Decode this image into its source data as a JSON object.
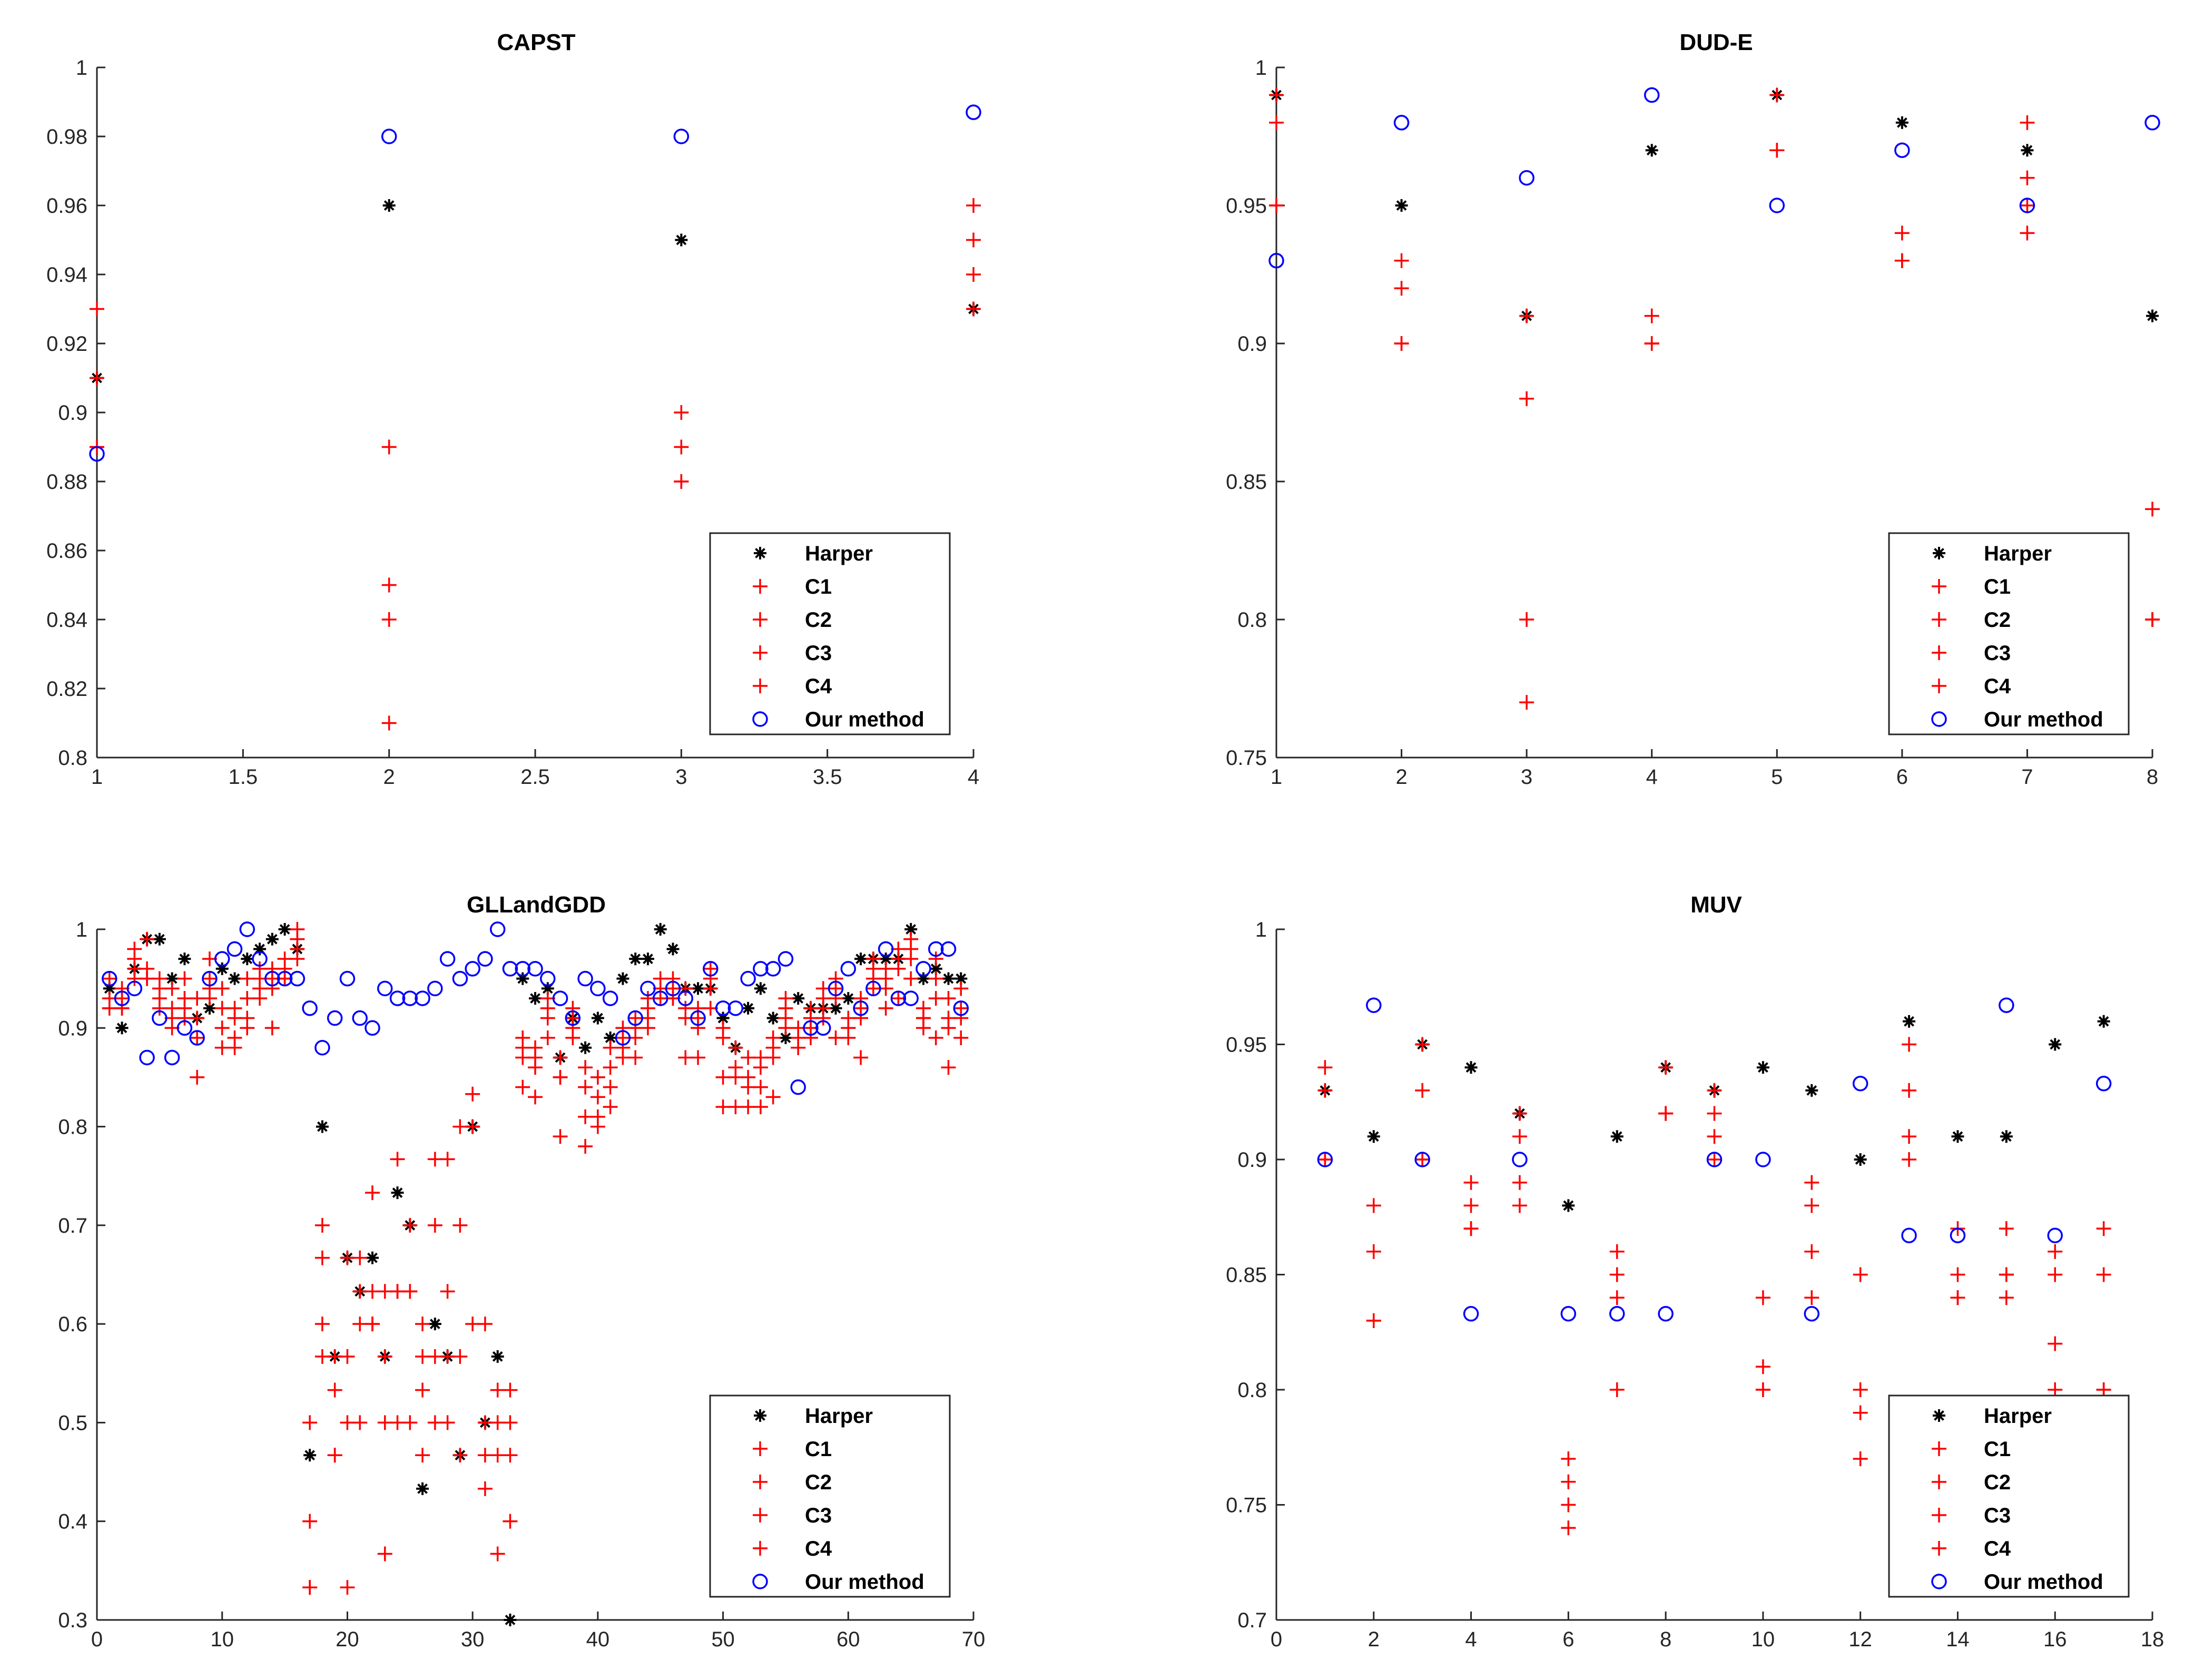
{
  "colors": {
    "harper": "#000000",
    "c": "#ff0000",
    "ours": "#0000ff",
    "axis": "#262626"
  },
  "legend": [
    {
      "label": "Harper",
      "marker": "asterisk",
      "color": "#000000"
    },
    {
      "label": "C1",
      "marker": "plus",
      "color": "#ff0000"
    },
    {
      "label": "C2",
      "marker": "plus",
      "color": "#ff0000"
    },
    {
      "label": "C3",
      "marker": "plus",
      "color": "#ff0000"
    },
    {
      "label": "C4",
      "marker": "plus",
      "color": "#ff0000"
    },
    {
      "label": "Our method",
      "marker": "circle",
      "color": "#0000ff"
    }
  ],
  "chart_data": [
    {
      "type": "scatter",
      "title": "CAPST",
      "xlim": [
        1,
        4
      ],
      "ylim": [
        0.8,
        1
      ],
      "xticks": [
        1,
        1.5,
        2,
        2.5,
        3,
        3.5,
        4
      ],
      "yticks": [
        0.8,
        0.82,
        0.84,
        0.86,
        0.88,
        0.9,
        0.92,
        0.94,
        0.96,
        0.98,
        1
      ],
      "legend_position": "bottom-right",
      "x": [
        1,
        2,
        3,
        4
      ],
      "series": [
        {
          "name": "Harper",
          "marker": "asterisk",
          "values": [
            0.91,
            0.96,
            0.95,
            0.93
          ]
        },
        {
          "name": "C1",
          "marker": "plus",
          "values": [
            0.93,
            0.89,
            0.9,
            0.96
          ]
        },
        {
          "name": "C2",
          "marker": "plus",
          "values": [
            0.91,
            0.85,
            0.89,
            0.95
          ]
        },
        {
          "name": "C3",
          "marker": "plus",
          "values": [
            0.89,
            0.84,
            0.88,
            0.94
          ]
        },
        {
          "name": "C4",
          "marker": "plus",
          "values": [
            0.89,
            0.81,
            0.88,
            0.93
          ]
        },
        {
          "name": "Our method",
          "marker": "circle",
          "values": [
            0.888,
            0.98,
            0.98,
            0.987
          ]
        }
      ]
    },
    {
      "type": "scatter",
      "title": "DUD-E",
      "xlim": [
        1,
        8
      ],
      "ylim": [
        0.75,
        1
      ],
      "xticks": [
        1,
        2,
        3,
        4,
        5,
        6,
        7,
        8
      ],
      "yticks": [
        0.75,
        0.8,
        0.85,
        0.9,
        0.95,
        1
      ],
      "legend_position": "bottom-right",
      "x": [
        1,
        2,
        3,
        4,
        5,
        6,
        7,
        8
      ],
      "series": [
        {
          "name": "Harper",
          "marker": "asterisk",
          "values": [
            0.99,
            0.95,
            0.91,
            0.97,
            0.99,
            0.98,
            0.97,
            0.91
          ]
        },
        {
          "name": "C1",
          "marker": "plus",
          "values": [
            0.99,
            0.93,
            0.91,
            0.91,
            0.99,
            0.94,
            0.98,
            0.84
          ]
        },
        {
          "name": "C2",
          "marker": "plus",
          "values": [
            0.98,
            0.92,
            0.88,
            0.9,
            0.97,
            0.93,
            0.96,
            0.8
          ]
        },
        {
          "name": "C3",
          "marker": "plus",
          "values": [
            0.95,
            0.9,
            0.8,
            0.9,
            0.97,
            0.93,
            0.95,
            0.8
          ]
        },
        {
          "name": "C4",
          "marker": "plus",
          "values": [
            0.95,
            0.9,
            0.77,
            0.9,
            0.97,
            0.93,
            0.94,
            0.8
          ]
        },
        {
          "name": "Our method",
          "marker": "circle",
          "values": [
            0.93,
            0.98,
            0.96,
            0.99,
            0.95,
            0.97,
            0.95,
            0.98
          ]
        }
      ]
    },
    {
      "type": "scatter",
      "title": "GLLandGDD",
      "xlim": [
        0,
        70
      ],
      "ylim": [
        0.3,
        1
      ],
      "xticks": [
        0,
        10,
        20,
        30,
        40,
        50,
        60,
        70
      ],
      "yticks": [
        0.3,
        0.4,
        0.5,
        0.6,
        0.7,
        0.8,
        0.9,
        1
      ],
      "legend_position": "bottom-right",
      "x": [
        1,
        2,
        3,
        4,
        5,
        6,
        7,
        8,
        9,
        10,
        11,
        12,
        13,
        14,
        15,
        16,
        17,
        18,
        19,
        20,
        21,
        22,
        23,
        24,
        25,
        26,
        27,
        28,
        29,
        30,
        31,
        32,
        33,
        34,
        35,
        36,
        37,
        38,
        39,
        40,
        41,
        42,
        43,
        44,
        45,
        46,
        47,
        48,
        49,
        50,
        51,
        52,
        53,
        54,
        55,
        56,
        57,
        58,
        59,
        60,
        61,
        62,
        63,
        64,
        65,
        66,
        67,
        68,
        69
      ],
      "series": [
        {
          "name": "Harper",
          "marker": "asterisk",
          "values": [
            0.94,
            0.9,
            0.96,
            0.99,
            0.99,
            0.95,
            0.97,
            0.91,
            0.92,
            0.96,
            0.95,
            0.97,
            0.98,
            0.99,
            1.0,
            0.98,
            0.467,
            0.8,
            0.567,
            0.667,
            0.633,
            0.667,
            0.567,
            0.733,
            0.7,
            0.433,
            0.6,
            0.567,
            0.467,
            0.8,
            0.5,
            0.567,
            0.3,
            0.95,
            0.93,
            0.94,
            0.87,
            0.91,
            0.88,
            0.91,
            0.89,
            0.95,
            0.97,
            0.97,
            1.0,
            0.98,
            0.94,
            0.94,
            0.94,
            0.91,
            0.88,
            0.92,
            0.94,
            0.91,
            0.89,
            0.93,
            0.92,
            0.92,
            0.92,
            0.93,
            0.97,
            0.97,
            0.97,
            0.97,
            1.0,
            0.95,
            0.96,
            0.95,
            0.95
          ]
        },
        {
          "name": "C1",
          "marker": "plus",
          "values": [
            0.95,
            0.94,
            0.98,
            0.99,
            0.95,
            0.94,
            0.95,
            0.93,
            0.97,
            0.94,
            0.92,
            0.95,
            0.96,
            0.96,
            0.97,
            1.0,
            0.5,
            0.7,
            0.567,
            0.667,
            0.667,
            0.733,
            0.633,
            0.767,
            0.7,
            0.6,
            0.767,
            0.767,
            0.8,
            0.833,
            0.6,
            0.533,
            0.533,
            0.89,
            0.88,
            0.93,
            0.87,
            0.92,
            0.86,
            0.85,
            0.88,
            0.9,
            0.91,
            0.93,
            0.95,
            0.95,
            0.94,
            0.92,
            0.96,
            0.9,
            0.88,
            0.87,
            0.87,
            0.89,
            0.93,
            0.9,
            0.92,
            0.94,
            0.95,
            0.91,
            0.93,
            0.97,
            0.96,
            0.98,
            0.99,
            0.92,
            0.97,
            0.93,
            0.94
          ]
        },
        {
          "name": "C2",
          "marker": "plus",
          "values": [
            0.93,
            0.93,
            0.97,
            0.96,
            0.94,
            0.92,
            0.93,
            0.91,
            0.95,
            0.92,
            0.91,
            0.93,
            0.95,
            0.95,
            0.96,
            0.99,
            0.4,
            0.667,
            0.533,
            0.567,
            0.633,
            0.633,
            0.567,
            0.633,
            0.633,
            0.567,
            0.7,
            0.633,
            0.7,
            0.8,
            0.5,
            0.5,
            0.5,
            0.88,
            0.87,
            0.92,
            0.85,
            0.91,
            0.84,
            0.83,
            0.86,
            0.89,
            0.9,
            0.92,
            0.94,
            0.94,
            0.92,
            0.91,
            0.95,
            0.89,
            0.86,
            0.85,
            0.86,
            0.88,
            0.92,
            0.89,
            0.91,
            0.93,
            0.94,
            0.9,
            0.92,
            0.96,
            0.95,
            0.97,
            0.98,
            0.91,
            0.95,
            0.91,
            0.92
          ]
        },
        {
          "name": "C3",
          "marker": "plus",
          "values": [
            0.92,
            0.92,
            0.96,
            0.95,
            0.93,
            0.91,
            0.92,
            0.89,
            0.94,
            0.9,
            0.89,
            0.91,
            0.94,
            0.94,
            0.95,
            0.98,
            0.333,
            0.6,
            0.467,
            0.5,
            0.6,
            0.6,
            0.5,
            0.633,
            0.633,
            0.533,
            0.567,
            0.567,
            0.567,
            0.8,
            0.467,
            0.467,
            0.467,
            0.87,
            0.86,
            0.91,
            0.85,
            0.9,
            0.81,
            0.81,
            0.84,
            0.88,
            0.89,
            0.91,
            0.93,
            0.93,
            0.91,
            0.9,
            0.94,
            0.85,
            0.85,
            0.84,
            0.84,
            0.87,
            0.91,
            0.88,
            0.9,
            0.92,
            0.93,
            0.9,
            0.91,
            0.95,
            0.94,
            0.96,
            0.97,
            0.91,
            0.93,
            0.9,
            0.91
          ]
        },
        {
          "name": "C4",
          "marker": "plus",
          "values": [
            0.92,
            0.92,
            0.95,
            0.95,
            0.92,
            0.9,
            0.91,
            0.85,
            0.93,
            0.88,
            0.88,
            0.9,
            0.93,
            0.9,
            0.95,
            0.97,
            0.333,
            0.567,
            0.467,
            0.333,
            0.5,
            0.6,
            0.367,
            0.5,
            0.5,
            0.467,
            0.5,
            0.5,
            0.467,
            0.6,
            0.433,
            0.367,
            0.4,
            0.84,
            0.83,
            0.89,
            0.79,
            0.89,
            0.78,
            0.8,
            0.82,
            0.87,
            0.87,
            0.9,
            0.93,
            0.93,
            0.87,
            0.87,
            0.92,
            0.82,
            0.82,
            0.82,
            0.82,
            0.83,
            0.9,
            0.88,
            0.89,
            0.91,
            0.89,
            0.89,
            0.87,
            0.94,
            0.92,
            0.93,
            0.95,
            0.9,
            0.89,
            0.86,
            0.89
          ]
        },
        {
          "name": "Our method",
          "marker": "circle",
          "values": [
            0.95,
            0.93,
            0.94,
            0.87,
            0.91,
            0.87,
            0.9,
            0.89,
            0.95,
            0.97,
            0.98,
            1.0,
            0.97,
            0.95,
            0.95,
            0.95,
            0.92,
            0.88,
            0.91,
            0.95,
            0.91,
            0.9,
            0.94,
            0.93,
            0.93,
            0.93,
            0.94,
            0.97,
            0.95,
            0.96,
            0.97,
            1.0,
            0.96,
            0.96,
            0.96,
            0.95,
            0.93,
            0.91,
            0.95,
            0.94,
            0.93,
            0.89,
            0.91,
            0.94,
            0.93,
            0.94,
            0.93,
            0.91,
            0.96,
            0.92,
            0.92,
            0.95,
            0.96,
            0.96,
            0.97,
            0.84,
            0.9,
            0.9,
            0.94,
            0.96,
            0.92,
            0.94,
            0.98,
            0.93,
            0.93,
            0.96,
            0.98,
            0.98,
            0.92
          ]
        }
      ]
    },
    {
      "type": "scatter",
      "title": "MUV",
      "xlim": [
        0,
        18
      ],
      "ylim": [
        0.7,
        1
      ],
      "xticks": [
        0,
        2,
        4,
        6,
        8,
        10,
        12,
        14,
        16,
        18
      ],
      "yticks": [
        0.7,
        0.75,
        0.8,
        0.85,
        0.9,
        0.95,
        1
      ],
      "legend_position": "bottom-right",
      "x": [
        1,
        2,
        3,
        4,
        5,
        6,
        7,
        8,
        9,
        10,
        11,
        12,
        13,
        14,
        15,
        16,
        17
      ],
      "series": [
        {
          "name": "Harper",
          "marker": "asterisk",
          "values": [
            0.93,
            0.91,
            0.95,
            0.94,
            0.92,
            0.88,
            0.91,
            0.94,
            0.93,
            0.94,
            0.93,
            0.9,
            0.96,
            0.91,
            0.91,
            0.95,
            0.96
          ]
        },
        {
          "name": "C1",
          "marker": "plus",
          "values": [
            0.94,
            0.88,
            0.95,
            0.89,
            0.92,
            0.77,
            0.86,
            0.94,
            0.93,
            0.84,
            0.89,
            0.85,
            0.95,
            0.87,
            0.87,
            0.86,
            0.87
          ]
        },
        {
          "name": "C2",
          "marker": "plus",
          "values": [
            0.93,
            0.86,
            0.93,
            0.88,
            0.91,
            0.76,
            0.85,
            0.92,
            0.92,
            0.81,
            0.88,
            0.8,
            0.93,
            0.85,
            0.85,
            0.85,
            0.85
          ]
        },
        {
          "name": "C3",
          "marker": "plus",
          "values": [
            0.9,
            0.83,
            0.9,
            0.87,
            0.89,
            0.75,
            0.84,
            0.92,
            0.91,
            0.8,
            0.86,
            0.79,
            0.91,
            0.84,
            0.85,
            0.82,
            0.8
          ]
        },
        {
          "name": "C4",
          "marker": "plus",
          "values": [
            0.9,
            0.83,
            0.9,
            0.87,
            0.88,
            0.74,
            0.8,
            0.92,
            0.9,
            0.8,
            0.84,
            0.77,
            0.9,
            0.84,
            0.84,
            0.8,
            0.8
          ]
        },
        {
          "name": "Our method",
          "marker": "circle",
          "values": [
            0.9,
            0.967,
            0.9,
            0.833,
            0.9,
            0.833,
            0.833,
            0.833,
            0.9,
            0.9,
            0.833,
            0.933,
            0.867,
            0.867,
            0.967,
            0.867,
            0.933
          ]
        }
      ]
    }
  ]
}
